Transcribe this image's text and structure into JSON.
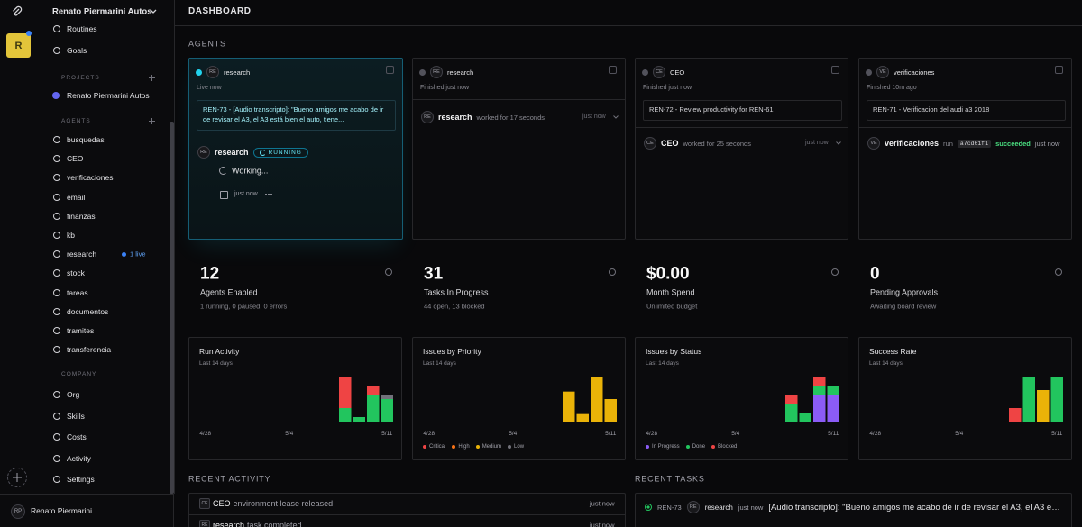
{
  "workspace": {
    "avatar": "R",
    "name": "Renato Piermarini Autos"
  },
  "nav": [
    "Routines",
    "Goals"
  ],
  "projects": {
    "heading": "PROJECTS",
    "items": [
      "Renato Piermarini Autos"
    ]
  },
  "agents_nav": {
    "heading": "AGENTS",
    "items": [
      {
        "label": "busquedas"
      },
      {
        "label": "CEO"
      },
      {
        "label": "verificaciones"
      },
      {
        "label": "email"
      },
      {
        "label": "finanzas"
      },
      {
        "label": "kb"
      },
      {
        "label": "research",
        "badge": "1 live"
      },
      {
        "label": "stock"
      },
      {
        "label": "tareas"
      },
      {
        "label": "documentos"
      },
      {
        "label": "tramites"
      },
      {
        "label": "transferencia"
      }
    ]
  },
  "company": {
    "heading": "COMPANY",
    "items": [
      "Org",
      "Skills",
      "Costs",
      "Activity",
      "Settings"
    ]
  },
  "user": {
    "initials": "RP",
    "name": "Renato Piermarini"
  },
  "header": {
    "title": "DASHBOARD"
  },
  "agents": {
    "heading": "AGENTS",
    "cards": [
      {
        "avatar": "RE",
        "name": "research",
        "status": "Live now",
        "live": true,
        "task": "REN-73 - [Audio transcripto]: \"Bueno amigos me acabo de ir de revisar el A3, el A3 está bien el auto, tiene...",
        "run": {
          "avatar": "RE",
          "name": "research",
          "badge": "RUNNING",
          "message": "Working...",
          "time": "just now"
        }
      },
      {
        "avatar": "RE",
        "name": "research",
        "status": "Finished just now",
        "live": false,
        "run": {
          "avatar": "RE",
          "name": "research",
          "detail": "worked for 17 seconds",
          "time": "just now"
        }
      },
      {
        "avatar": "CE",
        "name": "CEO",
        "status": "Finished just now",
        "live": false,
        "task": "REN-72 - Review productivity for REN-61",
        "run": {
          "avatar": "CE",
          "name": "CEO",
          "detail": "worked for 25 seconds",
          "time": "just now"
        }
      },
      {
        "avatar": "VE",
        "name": "verificaciones",
        "status": "Finished 10m ago",
        "live": false,
        "task": "REN-71 - Verificacion del audi a3 2018",
        "run": {
          "avatar": "VE",
          "name": "verificaciones",
          "detail": "run",
          "hash": "a7cd61f1",
          "result": "succeeded",
          "time": "just now"
        }
      }
    ]
  },
  "stats": [
    {
      "value": "12",
      "label": "Agents Enabled",
      "detail": "1 running, 0 paused, 0 errors"
    },
    {
      "value": "31",
      "label": "Tasks In Progress",
      "detail": "44 open, 13 blocked"
    },
    {
      "value": "$0.00",
      "label": "Month Spend",
      "detail": "Unlimited budget"
    },
    {
      "value": "0",
      "label": "Pending Approvals",
      "detail": "Awaiting board review"
    }
  ],
  "charts": [
    {
      "title": "Run Activity",
      "subtitle": "Last 14 days",
      "days": [
        "4/28",
        null,
        null,
        null,
        null,
        null,
        "5/4",
        null,
        null,
        null,
        null,
        null,
        null,
        "5/11"
      ],
      "series": [
        {
          "color": "#22c55e",
          "values": [
            0,
            0,
            0,
            0,
            0,
            0,
            0,
            0,
            0,
            0,
            3,
            1,
            6,
            5
          ]
        },
        {
          "color": "#ef4444",
          "values": [
            0,
            0,
            0,
            0,
            0,
            0,
            0,
            0,
            0,
            0,
            7,
            0,
            2,
            0
          ]
        },
        {
          "color": "#71717a",
          "values": [
            0,
            0,
            0,
            0,
            0,
            0,
            0,
            0,
            0,
            0,
            0,
            0,
            0,
            1
          ]
        }
      ]
    },
    {
      "title": "Issues by Priority",
      "subtitle": "Last 14 days",
      "days": [
        "4/28",
        null,
        null,
        null,
        null,
        null,
        "5/4",
        null,
        null,
        null,
        null,
        null,
        null,
        "5/11"
      ],
      "series": [
        {
          "name": "Critical",
          "color": "#ef4444",
          "values": [
            0,
            0,
            0,
            0,
            0,
            0,
            0,
            0,
            0,
            0,
            0,
            0,
            0,
            0
          ]
        },
        {
          "name": "High",
          "color": "#f97316",
          "values": [
            0,
            0,
            0,
            0,
            0,
            0,
            0,
            0,
            0,
            0,
            0,
            0,
            0,
            0
          ]
        },
        {
          "name": "Medium",
          "color": "#eab308",
          "values": [
            0,
            0,
            0,
            0,
            0,
            0,
            0,
            0,
            0,
            0,
            4,
            1,
            6,
            3
          ]
        },
        {
          "name": "Low",
          "color": "#71717a",
          "values": [
            0,
            0,
            0,
            0,
            0,
            0,
            0,
            0,
            0,
            0,
            0,
            0,
            0,
            0
          ]
        }
      ]
    },
    {
      "title": "Issues by Status",
      "subtitle": "Last 14 days",
      "days": [
        "4/28",
        null,
        null,
        null,
        null,
        null,
        "5/4",
        null,
        null,
        null,
        null,
        null,
        null,
        "5/11"
      ],
      "series": [
        {
          "name": "In Progress",
          "color": "#8b5cf6",
          "values": [
            0,
            0,
            0,
            0,
            0,
            0,
            0,
            0,
            0,
            0,
            0,
            0,
            3,
            3
          ]
        },
        {
          "name": "Done",
          "color": "#22c55e",
          "values": [
            0,
            0,
            0,
            0,
            0,
            0,
            0,
            0,
            0,
            0,
            2,
            1,
            1,
            1
          ]
        },
        {
          "name": "Blocked",
          "color": "#ef4444",
          "values": [
            0,
            0,
            0,
            0,
            0,
            0,
            0,
            0,
            0,
            0,
            1,
            0,
            1,
            0
          ]
        }
      ]
    },
    {
      "title": "Success Rate",
      "subtitle": "Last 14 days",
      "days": [
        "4/28",
        null,
        null,
        null,
        null,
        null,
        "5/4",
        null,
        null,
        null,
        null,
        null,
        null,
        "5/11"
      ],
      "series": [
        {
          "values": [
            null,
            null,
            null,
            null,
            null,
            null,
            null,
            null,
            null,
            null,
            30,
            100,
            70,
            98
          ],
          "colors": [
            null,
            null,
            null,
            null,
            null,
            null,
            null,
            null,
            null,
            null,
            "#ef4444",
            "#22c55e",
            "#eab308",
            "#22c55e"
          ]
        }
      ]
    }
  ],
  "recent_activity": {
    "heading": "RECENT ACTIVITY",
    "rows": [
      {
        "avatar": "CE",
        "actor": "CEO",
        "action": "environment lease released",
        "time": "just now"
      },
      {
        "avatar": "RE",
        "actor": "research",
        "action": "task completed",
        "time": "just now"
      }
    ]
  },
  "recent_tasks": {
    "heading": "RECENT TASKS",
    "rows": [
      {
        "id": "REN-73",
        "avatar": "RE",
        "agent": "research",
        "time": "just now",
        "title": "[Audio transcripto]: \"Bueno amigos me acabo de ir de revisar el A3, el A3 est..."
      }
    ]
  }
}
